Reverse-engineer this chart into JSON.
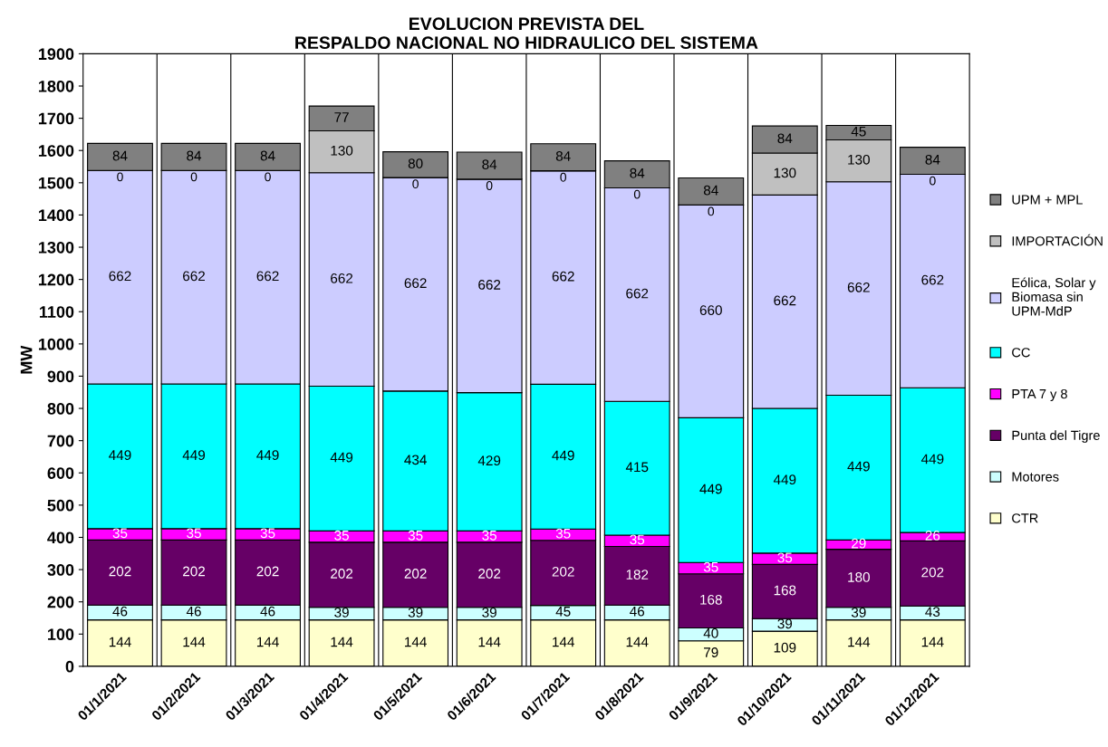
{
  "chart_data": {
    "type": "bar",
    "title": "EVOLUCION PREVISTA DEL\nRESPALDO NACIONAL NO HIDRAULICO DEL SISTEMA",
    "ylabel": "MW",
    "categories": [
      "01/1/2021",
      "01/2/2021",
      "01/3/2021",
      "01/4/2021",
      "01/5/2021",
      "01/6/2021",
      "01/7/2021",
      "01/8/2021",
      "01/9/2021",
      "01/10/2021",
      "01/11/2021",
      "01/12/2021"
    ],
    "stacked": true,
    "data_labels": true,
    "grid": "x",
    "legend": "right",
    "ylim": [
      0,
      1900
    ],
    "yticks": [
      0,
      100,
      200,
      300,
      400,
      500,
      600,
      700,
      800,
      900,
      1000,
      1100,
      1200,
      1300,
      1400,
      1500,
      1600,
      1700,
      1800,
      1900
    ],
    "series": [
      {
        "name": "CTR",
        "color": "#ffffcc",
        "values": [
          144,
          144,
          144,
          144,
          144,
          144,
          144,
          144,
          79,
          109,
          144,
          144
        ]
      },
      {
        "name": "Motores",
        "color": "#ccffff",
        "values": [
          46,
          46,
          46,
          39,
          39,
          39,
          45,
          46,
          40,
          39,
          39,
          43
        ]
      },
      {
        "name": "Punta del Tigre",
        "color": "#660066",
        "values": [
          202,
          202,
          202,
          202,
          202,
          202,
          202,
          182,
          168,
          168,
          180,
          202
        ]
      },
      {
        "name": "PTA 7 y 8",
        "color": "#ff00ff",
        "values": [
          35,
          35,
          35,
          35,
          35,
          35,
          35,
          35,
          35,
          35,
          29,
          26
        ]
      },
      {
        "name": "CC",
        "color": "#00ffff",
        "values": [
          449,
          449,
          449,
          449,
          434,
          429,
          449,
          415,
          449,
          449,
          449,
          449
        ]
      },
      {
        "name": "Eólica, Solar y\nBiomasa sin\nUPM-MdP",
        "color": "#ccccff",
        "values": [
          662,
          662,
          662,
          662,
          662,
          662,
          662,
          662,
          660,
          662,
          662,
          662
        ]
      },
      {
        "name": "IMPORTACIÓN",
        "color": "#c0c0c0",
        "values": [
          0,
          0,
          0,
          130,
          0,
          0,
          0,
          0,
          0,
          130,
          130,
          0
        ]
      },
      {
        "name": "UPM + MPL",
        "color": "#808080",
        "values": [
          84,
          84,
          84,
          77,
          80,
          84,
          84,
          84,
          84,
          84,
          45,
          84
        ]
      }
    ]
  }
}
